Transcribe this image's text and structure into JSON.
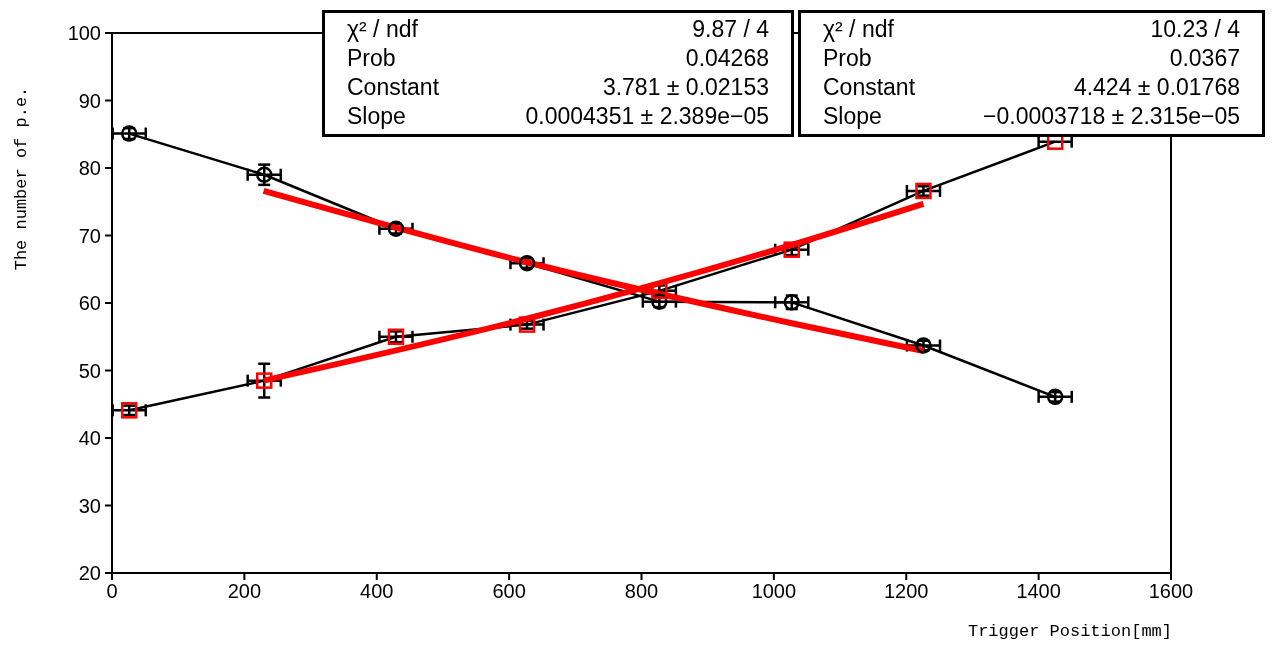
{
  "chart_data": {
    "type": "line",
    "xlabel": "Trigger Position[mm]",
    "ylabel": "The number of p.e.",
    "xlim": [
      0,
      1600
    ],
    "xticks": [
      0,
      200,
      400,
      600,
      800,
      1000,
      1200,
      1400,
      1600
    ],
    "ylim": [
      20,
      100
    ],
    "yticks": [
      20,
      30,
      40,
      50,
      60,
      70,
      80,
      90,
      100
    ],
    "grid": false,
    "legend": false,
    "line_style": "solid",
    "series": [
      {
        "marker": "circle",
        "color": "#000000",
        "x": [
          26,
          230,
          429,
          627,
          827,
          1027,
          1226,
          1425
        ],
        "values": [
          85.1,
          79.0,
          71.0,
          65.9,
          60.2,
          60.1,
          53.7,
          46.1
        ],
        "errors": [
          0.8,
          1.5,
          0.7,
          0.7,
          0.8,
          1.0,
          0.7,
          0.7
        ],
        "xerrors": [
          25,
          25,
          25,
          25,
          25,
          25,
          25,
          25
        ]
      },
      {
        "marker": "square",
        "color": "#ff0000",
        "x": [
          26,
          230,
          429,
          627,
          827,
          1027,
          1226,
          1425
        ],
        "values": [
          44.1,
          48.5,
          55.0,
          56.8,
          61.8,
          67.9,
          76.6,
          83.9
        ],
        "errors": [
          0.7,
          2.5,
          0.8,
          0.6,
          0.8,
          0.8,
          0.7,
          null
        ],
        "xerrors": [
          25,
          25,
          25,
          25,
          25,
          25,
          25,
          25
        ]
      },
      {
        "marker": "none",
        "color": "#ff0000",
        "x": [
          229,
          628,
          1027,
          1226
        ],
        "values": [
          76.6,
          66.0,
          57.0,
          52.9
        ]
      },
      {
        "marker": "none",
        "color": "#ff0000",
        "x": [
          229,
          628,
          1027,
          1226
        ],
        "values": [
          48.5,
          57.7,
          68.6,
          74.7
        ]
      }
    ],
    "annotations": [
      "χ² / ndf",
      "9.87 / 4",
      "Prob",
      "0.04268",
      "Constant",
      "3.781 ± 0.02153",
      "Slope",
      "0.0004351 ± 2.389e−05",
      "χ² / ndf",
      "10.23 / 4",
      "Prob",
      "0.0367",
      "Constant",
      "4.424 ± 0.01768",
      "Slope",
      "−0.0003718 ± 2.315e−05"
    ]
  }
}
